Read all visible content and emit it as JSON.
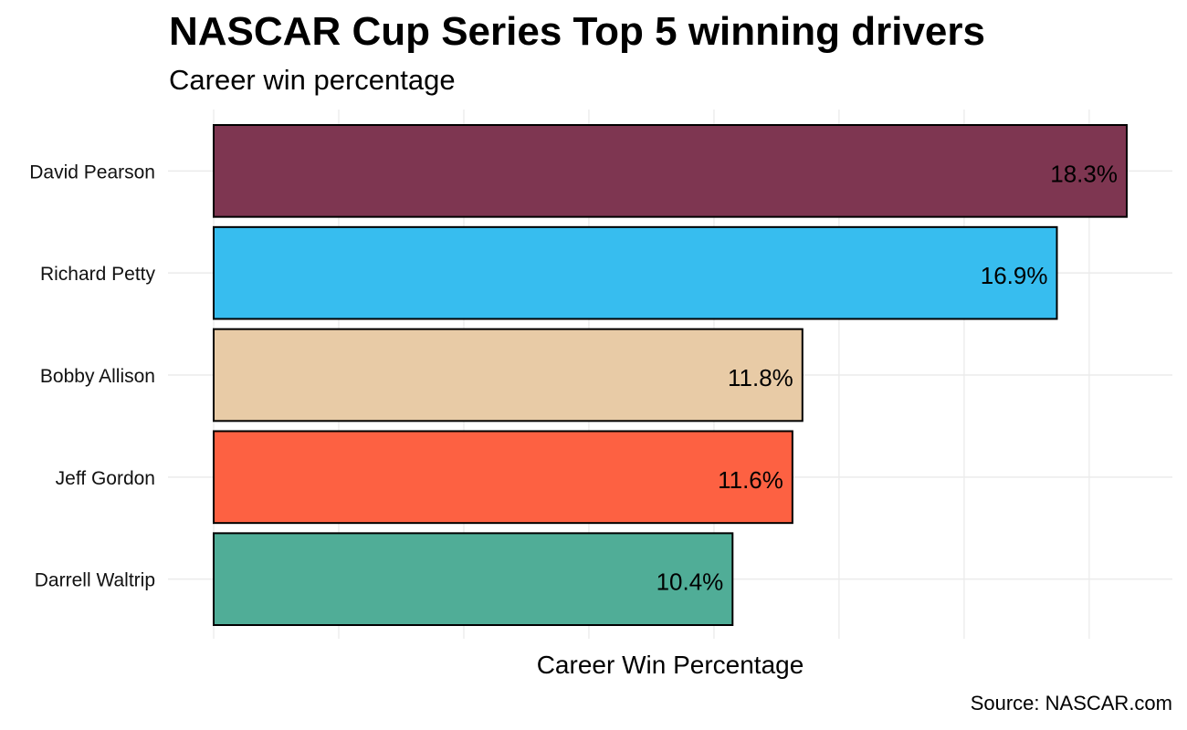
{
  "chart_data": {
    "type": "bar",
    "orientation": "horizontal",
    "title": "NASCAR Cup Series Top 5 winning drivers",
    "subtitle": "Career win percentage",
    "xlabel": "Career Win Percentage",
    "ylabel": "",
    "caption": "Source: NASCAR.com",
    "categories": [
      "David Pearson",
      "Richard Petty",
      "Bobby Allison",
      "Jeff Gordon",
      "Darrell Waltrip"
    ],
    "values": [
      18.3,
      16.9,
      11.8,
      11.6,
      10.4
    ],
    "value_labels": [
      "18.3%",
      "16.9%",
      "11.8%",
      "11.6%",
      "10.4%"
    ],
    "colors": [
      "#7e3651",
      "#37bdef",
      "#e8cba6",
      "#fd6142",
      "#50ad97"
    ],
    "xlim": [
      0,
      18.3
    ],
    "grid": true,
    "legend": "none"
  }
}
